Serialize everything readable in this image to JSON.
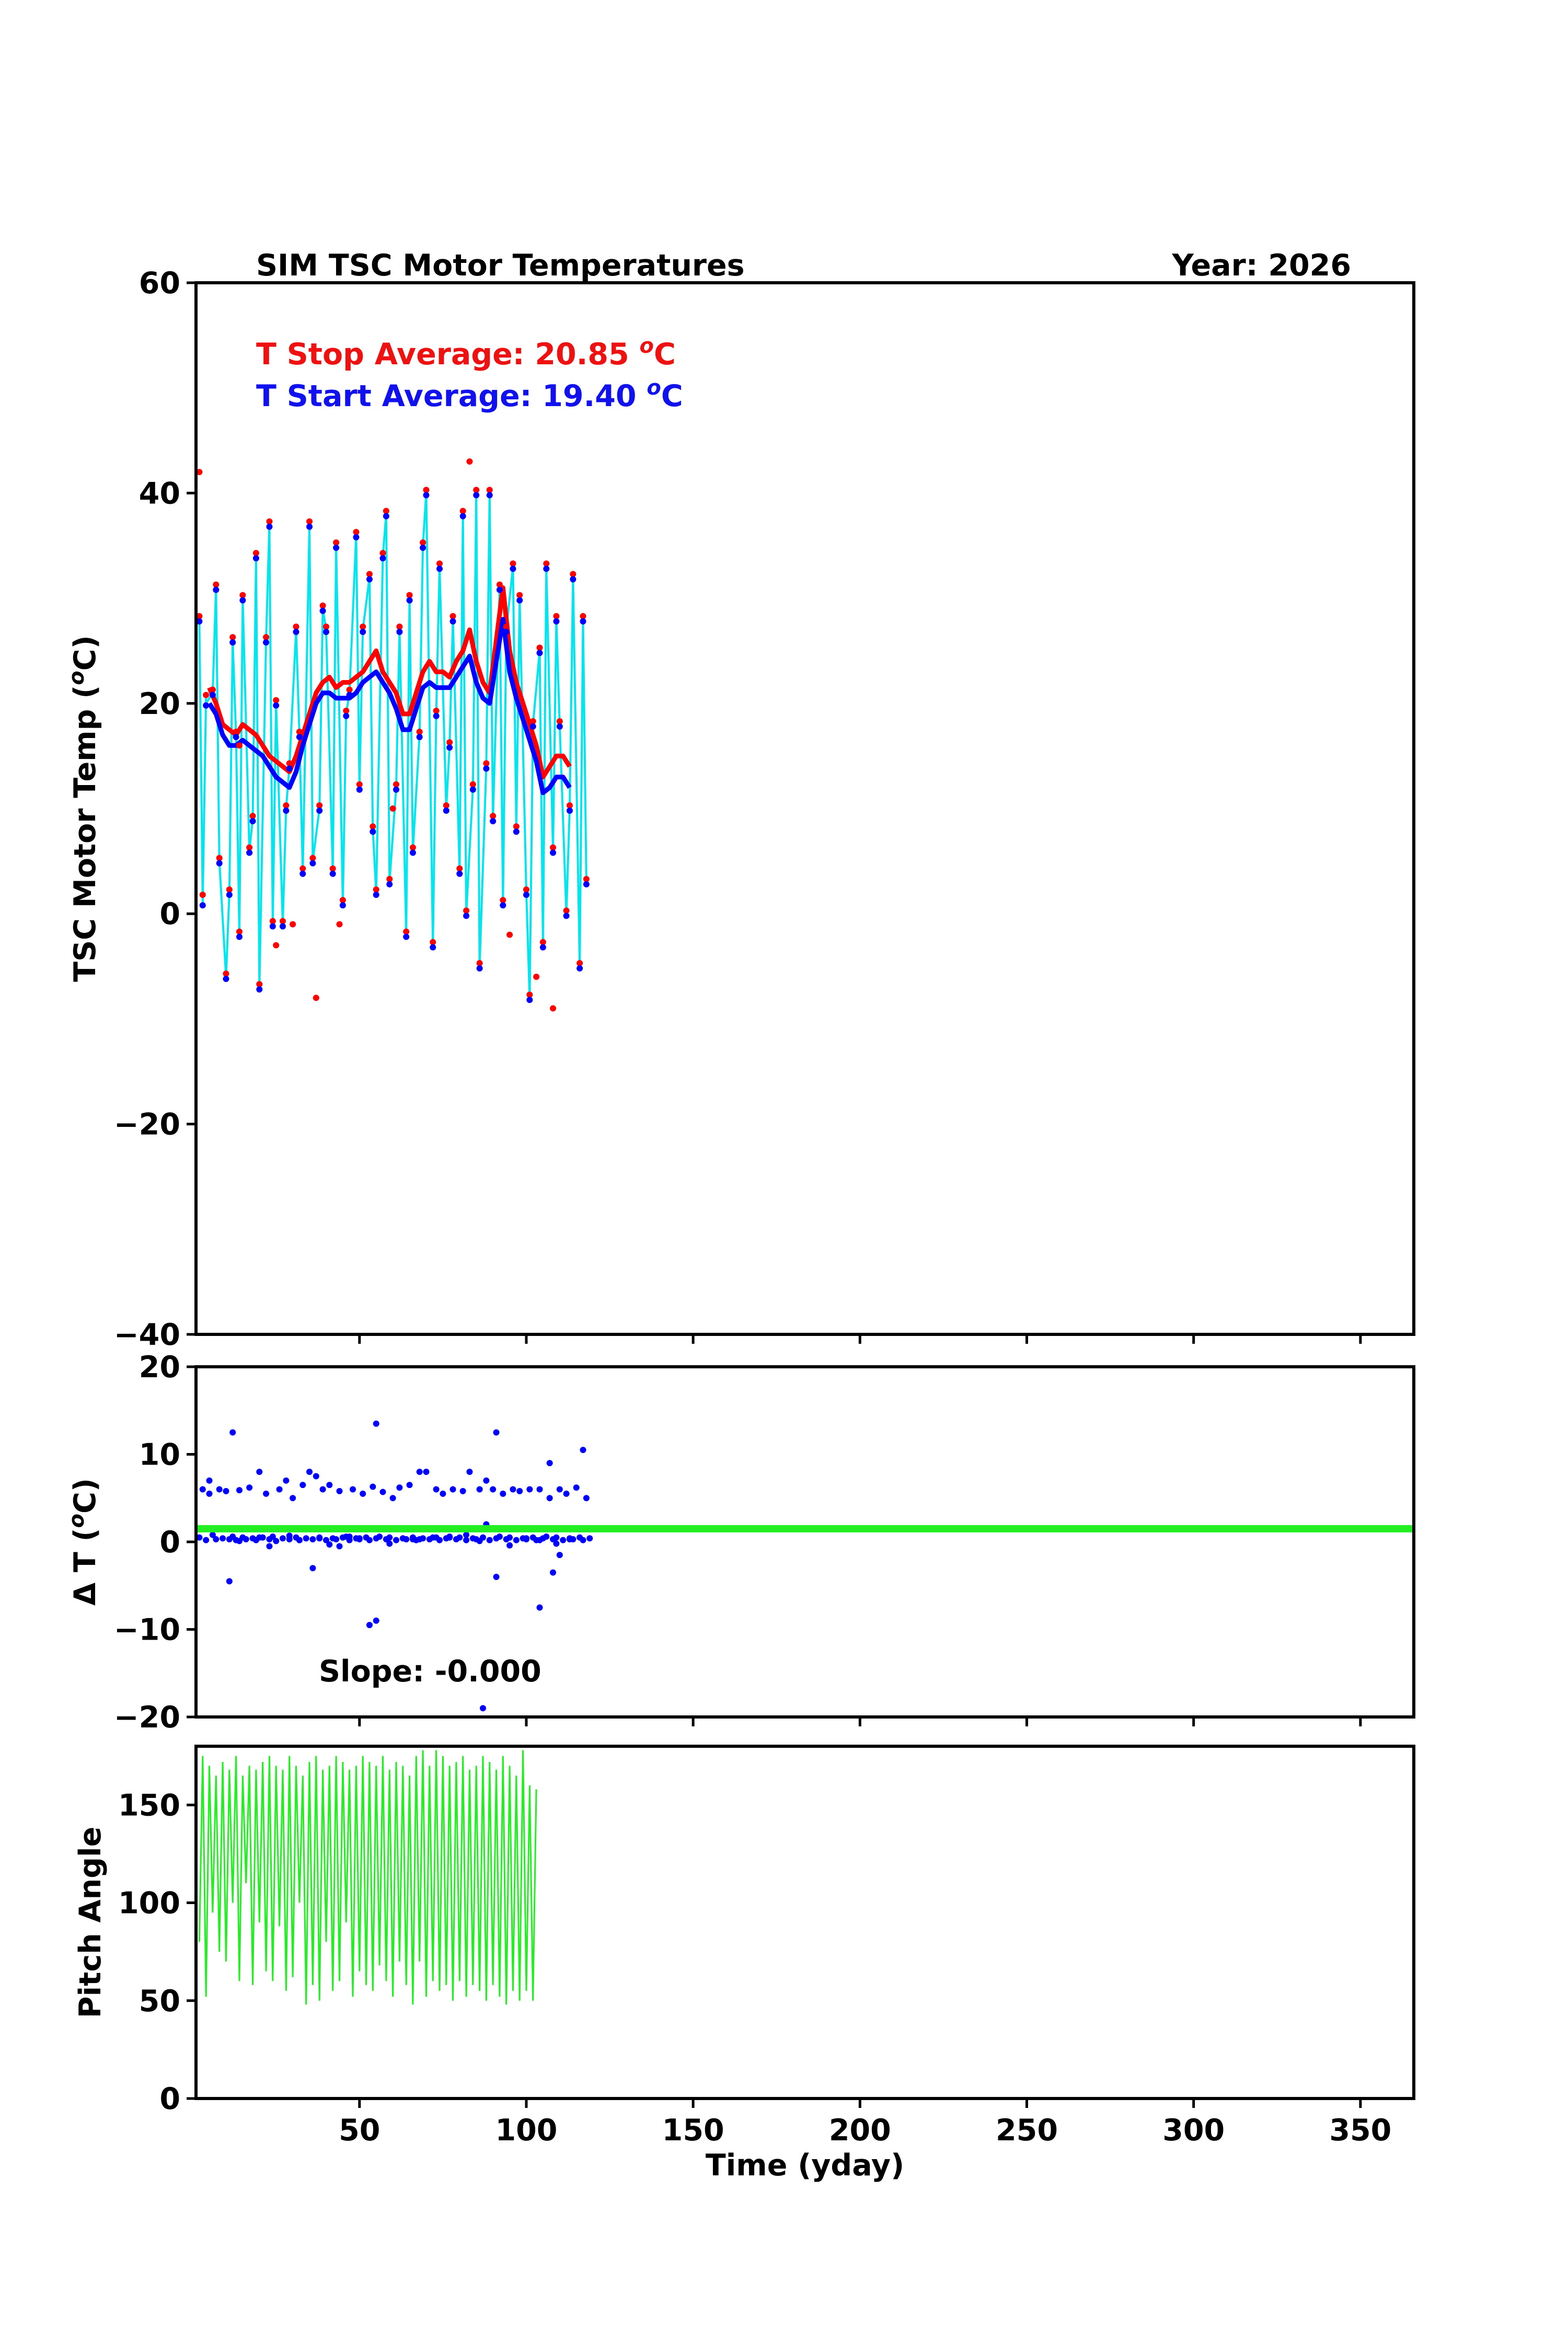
{
  "chart_data": [
    {
      "type": "line",
      "title": "SIM TSC Motor Temperatures",
      "year_label": "Year: 2026",
      "ylabel": "TSC Motor Temp (°C)",
      "ylabel_main": "TSC Motor Temp (",
      "ylabel_sup": "o",
      "ylabel_tail": "C)",
      "xlim": [
        1,
        366
      ],
      "ylim": [
        -40,
        60
      ],
      "yticks": [
        60,
        40,
        20,
        0,
        -20,
        -40
      ],
      "ytick_labels": [
        "60",
        "40",
        "20",
        "0",
        "−20",
        "−40"
      ],
      "annotations": [
        {
          "text": "T Stop Average:  20.85 °C",
          "main": "T Stop Average:  20.85 ",
          "sup": "o",
          "tail": "C",
          "color": "#ee1111"
        },
        {
          "text": "T Start Average: 19.40 °C",
          "main": "T Start Average: 19.40 ",
          "sup": "o",
          "tail": "C",
          "color": "#1111ee"
        }
      ],
      "colors": {
        "stop": "#ff0000",
        "start": "#0000ff",
        "link": "#00e5ee"
      },
      "series": [
        {
          "role": "stop_avg",
          "x": [
            5,
            7,
            9,
            11,
            13,
            15,
            17,
            19,
            21,
            23,
            25,
            27,
            29,
            31,
            33,
            35,
            37,
            39,
            41,
            43,
            45,
            47,
            49,
            51,
            53,
            55,
            57,
            59,
            61,
            63,
            65,
            67,
            69,
            71,
            73,
            75,
            77,
            79,
            81,
            83,
            85,
            87,
            89,
            91,
            93,
            95,
            97,
            99,
            101,
            103,
            105,
            107,
            109,
            111,
            113
          ],
          "values": [
            21.5,
            20,
            18,
            17.5,
            17,
            18,
            17.5,
            17,
            16,
            15,
            14.5,
            14,
            13.5,
            15,
            17,
            19,
            21,
            22,
            22.5,
            21.5,
            22,
            22,
            22.5,
            23,
            24,
            25,
            23,
            22,
            21,
            19,
            19,
            21,
            23,
            24,
            23,
            23,
            22.5,
            24,
            25,
            27,
            24,
            22,
            21,
            26,
            31,
            25,
            22,
            20,
            18,
            16,
            13,
            14,
            15,
            15,
            14
          ]
        },
        {
          "role": "start_avg",
          "x": [
            5,
            7,
            9,
            11,
            13,
            15,
            17,
            19,
            21,
            23,
            25,
            27,
            29,
            31,
            33,
            35,
            37,
            39,
            41,
            43,
            45,
            47,
            49,
            51,
            53,
            55,
            57,
            59,
            61,
            63,
            65,
            67,
            69,
            71,
            73,
            75,
            77,
            79,
            81,
            83,
            85,
            87,
            89,
            91,
            93,
            95,
            97,
            99,
            101,
            103,
            105,
            107,
            109,
            111,
            113
          ],
          "values": [
            20,
            19,
            17,
            16,
            16,
            16.5,
            16,
            15.5,
            15,
            14,
            13,
            12.5,
            12,
            13.5,
            16,
            18,
            20,
            21,
            21,
            20.5,
            20.5,
            20.5,
            21,
            22,
            22.5,
            23,
            22,
            21,
            19.5,
            17.5,
            17.5,
            19.5,
            21.5,
            22,
            21.5,
            21.5,
            21.5,
            22.5,
            23.5,
            24.5,
            22,
            20.5,
            20,
            24,
            28,
            23,
            20.5,
            18.5,
            16.5,
            14.5,
            11.5,
            12,
            13,
            13,
            12
          ]
        },
        {
          "role": "samples",
          "x": [
            2,
            3,
            4,
            6,
            7,
            8,
            10,
            11,
            12,
            13,
            14,
            15,
            17,
            18,
            19,
            20,
            22,
            23,
            24,
            25,
            27,
            28,
            29,
            31,
            32,
            33,
            35,
            36,
            38,
            39,
            40,
            42,
            43,
            45,
            46,
            47,
            49,
            50,
            51,
            53,
            54,
            55,
            57,
            58,
            59,
            61,
            62,
            64,
            65,
            66,
            68,
            69,
            70,
            72,
            73,
            74,
            76,
            77,
            78,
            80,
            81,
            82,
            84,
            85,
            86,
            88,
            89,
            90,
            92,
            93,
            94,
            96,
            97,
            98,
            100,
            101,
            102,
            104,
            105,
            106,
            108,
            109,
            110,
            112,
            113,
            114,
            116,
            117,
            118
          ],
          "start": [
            28,
            1,
            20,
            21,
            31,
            5,
            -6,
            2,
            26,
            17,
            -2,
            30,
            6,
            9,
            34,
            -7,
            26,
            37,
            -1,
            20,
            -1,
            10,
            14,
            27,
            17,
            4,
            37,
            5,
            10,
            29,
            27,
            4,
            35,
            1,
            19,
            21,
            36,
            12,
            27,
            32,
            8,
            2,
            34,
            38,
            3,
            12,
            27,
            -2,
            30,
            6,
            17,
            35,
            40,
            -3,
            19,
            33,
            10,
            16,
            28,
            4,
            38,
            0,
            12,
            40,
            -5,
            14,
            40,
            9,
            31,
            1,
            27,
            33,
            8,
            30,
            2,
            -8,
            18,
            25,
            -3,
            33,
            6,
            28,
            18,
            0,
            10,
            32,
            -5,
            28,
            3
          ],
          "stop": [
            28,
            1.5,
            20.5,
            21,
            31,
            5,
            -6,
            2,
            26,
            17,
            -2,
            30,
            6,
            9,
            34,
            -7,
            26,
            37,
            -1,
            20,
            -1,
            10,
            14,
            27,
            17,
            4,
            37,
            5,
            10,
            29,
            27,
            4,
            35,
            1,
            19,
            21,
            36,
            12,
            27,
            32,
            8,
            2,
            34,
            38,
            3,
            12,
            27,
            -2,
            30,
            6,
            17,
            35,
            40,
            -3,
            19,
            33,
            10,
            16,
            28,
            4,
            38,
            0,
            12,
            40,
            -5,
            14,
            40,
            9,
            31,
            1,
            27,
            33,
            8,
            30,
            2,
            -8,
            18,
            25,
            -3,
            33,
            6,
            28,
            18,
            0,
            10,
            32,
            -5,
            28,
            3
          ]
        }
      ],
      "outlier_stop_points": {
        "x": [
          2,
          14,
          25,
          30,
          37,
          44,
          60,
          83,
          95,
          103,
          108
        ],
        "y": [
          42,
          16,
          -3,
          -1,
          -8,
          -1,
          10,
          43,
          -2,
          -6,
          -9
        ]
      }
    },
    {
      "type": "scatter",
      "ylabel": "Δ T (°C)",
      "ylabel_main": "Δ T (",
      "ylabel_sup": "o",
      "ylabel_tail": "C)",
      "xlim": [
        1,
        366
      ],
      "ylim": [
        -20,
        20
      ],
      "yticks": [
        20,
        10,
        0,
        -10,
        -20
      ],
      "ytick_labels": [
        "20",
        "10",
        "0",
        "−10",
        "−20"
      ],
      "annotation": "Slope:  -0.000",
      "fit_line": {
        "y": 1.5,
        "color": "#22ee22"
      },
      "point_color": "#0000ff",
      "x": [
        2,
        3,
        4,
        5,
        6,
        7,
        8,
        9,
        10,
        11,
        12,
        13,
        14,
        15,
        16,
        17,
        18,
        19,
        20,
        21,
        22,
        23,
        24,
        25,
        26,
        27,
        28,
        29,
        30,
        31,
        32,
        33,
        34,
        35,
        36,
        37,
        38,
        39,
        40,
        41,
        42,
        43,
        44,
        45,
        46,
        47,
        48,
        49,
        50,
        51,
        52,
        53,
        54,
        55,
        56,
        57,
        58,
        59,
        60,
        61,
        62,
        63,
        64,
        65,
        66,
        67,
        68,
        69,
        70,
        71,
        72,
        73,
        74,
        75,
        76,
        77,
        78,
        79,
        80,
        81,
        82,
        83,
        84,
        85,
        86,
        87,
        88,
        89,
        90,
        91,
        92,
        93,
        94,
        95,
        96,
        97,
        98,
        99,
        100,
        101,
        102,
        103,
        104,
        105,
        106,
        107,
        108,
        109,
        110,
        111,
        112,
        113,
        114,
        115,
        116,
        117,
        118,
        119,
        12,
        20,
        29,
        38,
        47,
        55,
        64,
        73,
        82,
        91,
        100,
        109,
        117,
        5,
        14,
        23,
        32,
        41,
        50,
        59,
        68,
        77,
        86,
        95,
        104,
        113,
        11,
        36,
        44,
        55,
        87,
        88,
        91,
        104,
        107,
        108,
        110,
        53,
        66
      ],
      "y": [
        0.5,
        6,
        0.2,
        5.5,
        0.8,
        0.3,
        6,
        0.4,
        5.8,
        0.3,
        0.6,
        0.2,
        5.9,
        0.5,
        0.3,
        6.2,
        0.4,
        0.2,
        8,
        0.5,
        5.5,
        0.3,
        0.6,
        0.1,
        6,
        0.4,
        7,
        0.3,
        5,
        0.5,
        0.2,
        6.5,
        0.4,
        8,
        0.3,
        7.5,
        0.5,
        6,
        0.2,
        6.5,
        0.4,
        0.3,
        5.8,
        0.5,
        0.6,
        0.2,
        6,
        0.4,
        0.3,
        5.5,
        0.5,
        0.2,
        6.3,
        0.4,
        0.6,
        5.7,
        0.3,
        0.5,
        5,
        0.2,
        6.2,
        0.4,
        0.3,
        6.5,
        0.5,
        0.2,
        8,
        0.4,
        8,
        0.3,
        0.5,
        6,
        0.2,
        5.5,
        0.4,
        0.6,
        6,
        0.3,
        0.5,
        5.8,
        0.2,
        8,
        0.4,
        0.3,
        6,
        0.5,
        7,
        0.2,
        6,
        0.4,
        0.6,
        5.5,
        0.3,
        0.5,
        6,
        0.2,
        5.8,
        0.4,
        0.3,
        6,
        0.5,
        0.2,
        6,
        0.4,
        0.6,
        5,
        0.3,
        0.5,
        6,
        0.2,
        5.5,
        0.4,
        0.3,
        6.2,
        0.5,
        0.2,
        5,
        0.4,
        12.5,
        0.5,
        0.7,
        0.4,
        0.6,
        13.5,
        0.3,
        0.5,
        0.8,
        12.5,
        0.4,
        -0.2,
        10.5,
        7,
        0.1,
        -0.5,
        0.2,
        -0.3,
        0.4,
        -0.2,
        0.3,
        0.5,
        0.1,
        -0.4,
        0.2,
        0.3,
        -4.5,
        -3,
        -0.5,
        -9,
        -19,
        2,
        -4,
        -7.5,
        9,
        -3.5,
        -1.5,
        -9.5,
        0.3
      ]
    },
    {
      "type": "line",
      "ylabel": "Pitch Angle",
      "xlabel": "Time (yday)",
      "xlim": [
        1,
        366
      ],
      "ylim": [
        0,
        180
      ],
      "yticks": [
        150,
        100,
        50,
        0
      ],
      "ytick_labels": [
        "150",
        "100",
        "50",
        "0"
      ],
      "xticks": [
        50,
        100,
        150,
        200,
        250,
        300,
        350
      ],
      "xtick_labels": [
        "50",
        "100",
        "150",
        "200",
        "250",
        "300",
        "350"
      ],
      "color": "#22ee22",
      "x": [
        2,
        3,
        4,
        5,
        6,
        7,
        8,
        9,
        10,
        11,
        12,
        13,
        14,
        15,
        16,
        17,
        18,
        19,
        20,
        21,
        22,
        23,
        24,
        25,
        26,
        27,
        28,
        29,
        30,
        31,
        32,
        33,
        34,
        35,
        36,
        37,
        38,
        39,
        40,
        41,
        42,
        43,
        44,
        45,
        46,
        47,
        48,
        49,
        50,
        51,
        52,
        53,
        54,
        55,
        56,
        57,
        58,
        59,
        60,
        61,
        62,
        63,
        64,
        65,
        66,
        67,
        68,
        69,
        70,
        71,
        72,
        73,
        74,
        75,
        76,
        77,
        78,
        79,
        80,
        81,
        82,
        83,
        84,
        85,
        86,
        87,
        88,
        89,
        90,
        91,
        92,
        93,
        94,
        95,
        96,
        97,
        98,
        99,
        100,
        101,
        102,
        103
      ],
      "values": [
        80,
        175,
        52,
        170,
        95,
        165,
        75,
        172,
        70,
        168,
        100,
        175,
        60,
        165,
        110,
        170,
        58,
        168,
        90,
        172,
        65,
        175,
        60,
        170,
        88,
        168,
        55,
        175,
        62,
        170,
        100,
        165,
        48,
        172,
        58,
        175,
        50,
        168,
        80,
        170,
        55,
        175,
        60,
        172,
        90,
        168,
        52,
        170,
        65,
        175,
        58,
        172,
        55,
        170,
        68,
        175,
        60,
        168,
        52,
        172,
        70,
        170,
        58,
        165,
        48,
        175,
        70,
        178,
        52,
        170,
        60,
        178,
        55,
        175,
        58,
        170,
        50,
        172,
        60,
        175,
        52,
        168,
        58,
        170,
        55,
        175,
        50,
        172,
        58,
        168,
        52,
        175,
        48,
        170,
        55,
        165,
        50,
        178,
        55,
        160,
        50,
        158
      ]
    }
  ]
}
